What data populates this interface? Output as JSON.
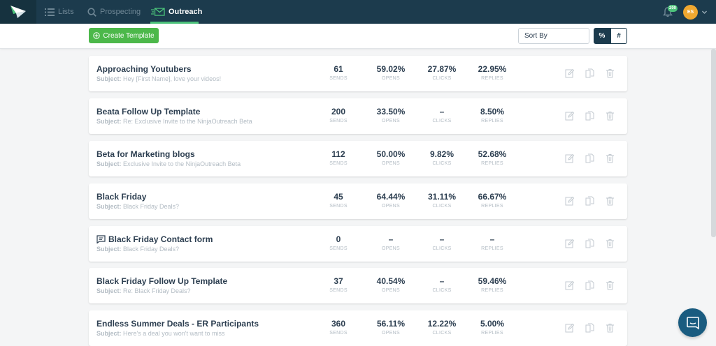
{
  "nav": {
    "items": [
      {
        "label": "Lists",
        "icon": "list-icon"
      },
      {
        "label": "Prospecting",
        "icon": "search-icon"
      },
      {
        "label": "Outreach",
        "icon": "envelope-icon",
        "active": true
      }
    ],
    "notification_count": "200",
    "avatar_initials": "ES"
  },
  "toolbar": {
    "create_label": "Create Template",
    "sort_label": "Sort By",
    "percent_label": "%",
    "number_label": "#"
  },
  "labels": {
    "sends": "SENDS",
    "opens": "OPENS",
    "clicks": "CLICKS",
    "replies": "REPLIES",
    "subject": "Subject:"
  },
  "templates": [
    {
      "name": "Approaching Youtubers",
      "subject": "Hey [First Name], love your videos!",
      "sends": "61",
      "opens": "59.02%",
      "clicks": "27.87%",
      "replies": "22.95%"
    },
    {
      "name": "Beata Follow Up Template",
      "subject": "Re: Exclusive Invite to the NinjaOutreach Beta",
      "sends": "200",
      "opens": "33.50%",
      "clicks": "–",
      "replies": "8.50%"
    },
    {
      "name": "Beta for Marketing blogs",
      "subject": "Exclusive Invite to the NinjaOutreach Beta",
      "sends": "112",
      "opens": "50.00%",
      "clicks": "9.82%",
      "replies": "52.68%"
    },
    {
      "name": "Black Friday",
      "subject": "Black Friday Deals?",
      "sends": "45",
      "opens": "64.44%",
      "clicks": "31.11%",
      "replies": "66.67%"
    },
    {
      "name": "Black Friday Contact form",
      "subject": "Black Friday Deals?",
      "sends": "0",
      "opens": "–",
      "clicks": "–",
      "replies": "–",
      "contact_form": true
    },
    {
      "name": "Black Friday Follow Up Template",
      "subject": "Re: Black Friday Deals?",
      "sends": "37",
      "opens": "40.54%",
      "clicks": "–",
      "replies": "59.46%"
    },
    {
      "name": "Endless Summer Deals - ER Participants",
      "subject": "Here's a deal you won't want to miss",
      "sends": "360",
      "opens": "56.11%",
      "clicks": "12.22%",
      "replies": "5.00%"
    }
  ],
  "colors": {
    "nav_bg": "#1c3b4d",
    "accent_green": "#4cc37b",
    "button_green": "#4cb84a",
    "avatar": "#f0a830",
    "chat": "#1a5c80"
  }
}
